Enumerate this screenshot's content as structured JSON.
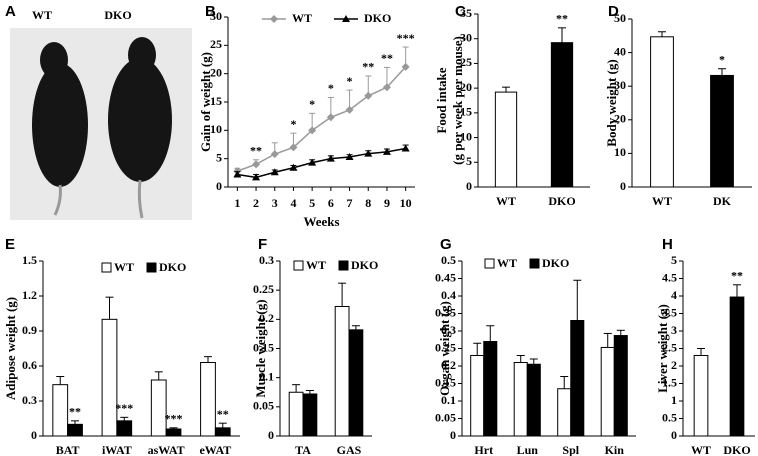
{
  "chart_data": [
    {
      "panel": "A",
      "type": "image",
      "labels": [
        "WT",
        "DKO"
      ]
    },
    {
      "panel": "B",
      "type": "line",
      "ylabel": "Gain of weight (g)",
      "xlabel": "Weeks",
      "x": [
        1,
        2,
        3,
        4,
        5,
        6,
        7,
        8,
        9,
        10
      ],
      "xlim": [
        0.5,
        10.5
      ],
      "xticks": [
        1,
        2,
        3,
        4,
        5,
        6,
        7,
        8,
        9,
        10
      ],
      "ylim": [
        0,
        30
      ],
      "yticks": [
        0,
        5,
        10,
        15,
        20,
        25,
        30
      ],
      "series": [
        {
          "name": "WT",
          "color": "#999999",
          "marker": "diamond",
          "values": [
            2.8,
            4.0,
            5.8,
            7.0,
            10.0,
            12.3,
            13.6,
            16.1,
            17.6,
            21.2
          ],
          "errors": [
            0.5,
            0.8,
            2.0,
            2.5,
            3.0,
            3.5,
            3.5,
            3.5,
            3.5,
            3.5
          ]
        },
        {
          "name": "DKO",
          "color": "#000000",
          "marker": "triangle",
          "values": [
            2.2,
            1.7,
            2.6,
            3.4,
            4.3,
            5.0,
            5.3,
            5.9,
            6.2,
            6.8
          ],
          "errors": [
            0.5,
            0.5,
            0.4,
            0.4,
            0.5,
            0.5,
            0.4,
            0.5,
            0.5,
            0.6
          ]
        }
      ],
      "annotations": [
        null,
        "**",
        null,
        "*",
        "*",
        "*",
        "*",
        "**",
        "**",
        "***"
      ]
    },
    {
      "panel": "C",
      "type": "bar",
      "ylabel": [
        "Food intake",
        "(g per week per mouse)"
      ],
      "categories": [
        "WT",
        "DKO"
      ],
      "values": [
        19.2,
        29.2
      ],
      "errors": [
        1.0,
        3.0
      ],
      "colors": [
        "#ffffff",
        "#000000"
      ],
      "annotations": [
        null,
        "**"
      ],
      "ylim": [
        0,
        35
      ],
      "yticks": [
        0,
        5,
        10,
        15,
        20,
        25,
        30,
        35
      ]
    },
    {
      "panel": "D",
      "type": "bar",
      "ylabel": "Body weight (g)",
      "categories": [
        "WT",
        "DK"
      ],
      "values": [
        44.7,
        33.2
      ],
      "errors": [
        1.5,
        2.0
      ],
      "colors": [
        "#ffffff",
        "#000000"
      ],
      "annotations": [
        null,
        "*"
      ],
      "ylim": [
        0,
        50
      ],
      "yticks": [
        0,
        10,
        20,
        30,
        40,
        50
      ]
    },
    {
      "panel": "E",
      "type": "bar",
      "ylabel": "Adipose weight (g)",
      "categories": [
        "BAT",
        "iWAT",
        "asWAT",
        "eWAT"
      ],
      "ylim": [
        0,
        1.5
      ],
      "yticks": [
        0,
        0.3,
        0.6,
        0.9,
        1.2,
        1.5
      ],
      "series": [
        {
          "name": "WT",
          "color": "#ffffff",
          "values": [
            0.44,
            1.0,
            0.48,
            0.63
          ],
          "errors": [
            0.07,
            0.19,
            0.07,
            0.05
          ]
        },
        {
          "name": "DKO",
          "color": "#000000",
          "values": [
            0.1,
            0.13,
            0.06,
            0.07
          ],
          "errors": [
            0.03,
            0.03,
            0.01,
            0.04
          ],
          "annotations": [
            "**",
            "***",
            "***",
            "**"
          ]
        }
      ]
    },
    {
      "panel": "F",
      "type": "bar",
      "ylabel": "Muscle weight (g)",
      "categories": [
        "TA",
        "GAS"
      ],
      "ylim": [
        0,
        0.3
      ],
      "yticks": [
        0,
        0.05,
        0.1,
        0.15,
        0.2,
        0.25,
        0.3
      ],
      "series": [
        {
          "name": "WT",
          "color": "#ffffff",
          "values": [
            0.075,
            0.222
          ],
          "errors": [
            0.013,
            0.04
          ]
        },
        {
          "name": "DKO",
          "color": "#000000",
          "values": [
            0.072,
            0.182
          ],
          "errors": [
            0.006,
            0.007
          ]
        }
      ]
    },
    {
      "panel": "G",
      "type": "bar",
      "ylabel": "Organ weight (g)",
      "categories": [
        "Hrt",
        "Lun",
        "Spl",
        "Kin"
      ],
      "ylim": [
        0,
        0.5
      ],
      "yticks": [
        0,
        0.05,
        0.1,
        0.15,
        0.2,
        0.25,
        0.3,
        0.35,
        0.4,
        0.45,
        0.5
      ],
      "series": [
        {
          "name": "WT",
          "color": "#ffffff",
          "values": [
            0.23,
            0.21,
            0.135,
            0.253
          ],
          "errors": [
            0.035,
            0.02,
            0.035,
            0.04
          ]
        },
        {
          "name": "DKO",
          "color": "#000000",
          "values": [
            0.27,
            0.205,
            0.33,
            0.287
          ],
          "errors": [
            0.045,
            0.015,
            0.115,
            0.015
          ]
        }
      ]
    },
    {
      "panel": "H",
      "type": "bar",
      "ylabel": "Liver weight (g)",
      "categories": [
        "WT",
        "DKO"
      ],
      "values": [
        2.3,
        3.97
      ],
      "errors": [
        0.2,
        0.35
      ],
      "colors": [
        "#ffffff",
        "#000000"
      ],
      "annotations": [
        null,
        "**"
      ],
      "ylim": [
        0,
        5
      ],
      "yticks": [
        0,
        0.5,
        1,
        1.5,
        2,
        2.5,
        3,
        3.5,
        4,
        4.5,
        5
      ]
    }
  ]
}
